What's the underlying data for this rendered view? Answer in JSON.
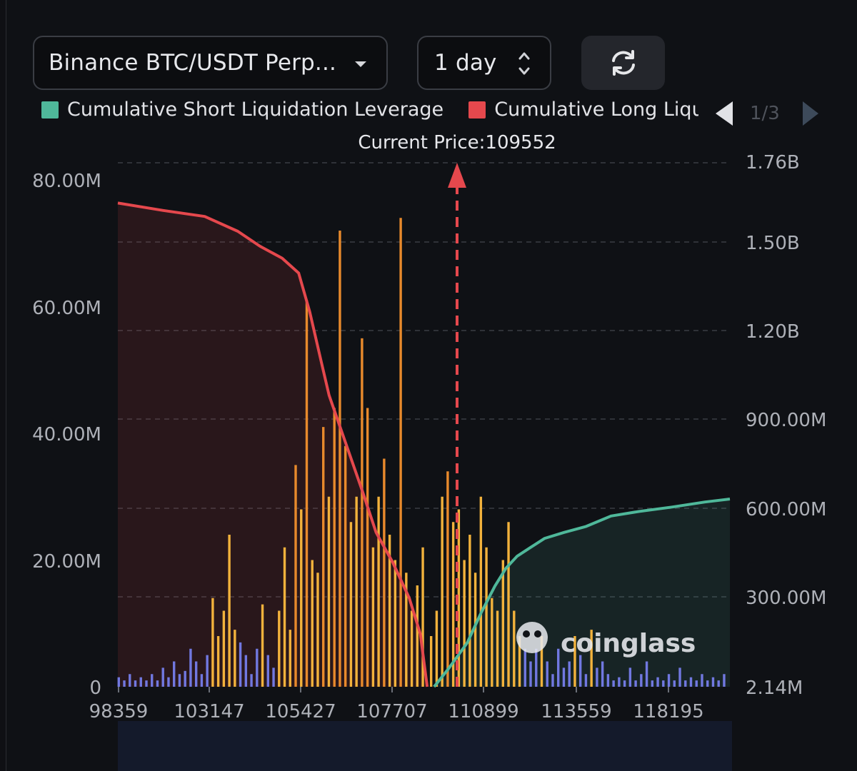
{
  "controls": {
    "exchange": "Binance BTC/USDT Perp...",
    "interval": "1 day"
  },
  "legend": {
    "items": [
      {
        "label": "Cumulative Short Liquidation Leverage",
        "color": "#4fb89a"
      },
      {
        "label": "Cumulative Long Liquidation Leverage",
        "color": "#e5484d"
      }
    ],
    "page": "1/3"
  },
  "watermark": "coinglass",
  "chart_data": {
    "type": "bar",
    "current_price_label": "Current Price:109552",
    "current_price": 109552,
    "x_ticks": [
      "98359",
      "103147",
      "105427",
      "107707",
      "110899",
      "113559",
      "118195"
    ],
    "x_range": [
      98359,
      120500
    ],
    "left_axis": {
      "ticks": [
        "0",
        "20.00M",
        "40.00M",
        "60.00M",
        "80.00M"
      ],
      "range": [
        0,
        80000000
      ]
    },
    "right_axis": {
      "ticks": [
        "2.14M",
        "300.00M",
        "600.00M",
        "900.00M",
        "1.20B",
        "1.50B",
        "1.76B"
      ],
      "range": [
        2140000,
        1760000000
      ]
    },
    "grid": true,
    "series": [
      {
        "name": "Cumulative Short Liquidation Leverage",
        "kind": "line",
        "color": "#4fb89a",
        "x": [
          109800,
          110300,
          111000,
          111500,
          112000,
          112400,
          112800,
          113300,
          113800,
          114500,
          115300,
          116200,
          117200,
          118400,
          119600,
          120500
        ],
        "y": [
          2140000,
          60000000,
          150000000,
          250000000,
          340000000,
          400000000,
          440000000,
          470000000,
          500000000,
          520000000,
          540000000,
          575000000,
          590000000,
          605000000,
          622000000,
          632000000
        ]
      },
      {
        "name": "Cumulative Long Liquidation Leverage",
        "kind": "line",
        "color": "#e5484d",
        "x": [
          98359,
          100000,
          101500,
          102700,
          103500,
          104300,
          104900,
          105300,
          105700,
          106000,
          106600,
          107200,
          107700,
          108300,
          108900,
          109300,
          109552
        ],
        "y": [
          1625000000,
          1600000000,
          1580000000,
          1530000000,
          1480000000,
          1440000000,
          1390000000,
          1260000000,
          1100000000,
          980000000,
          820000000,
          660000000,
          520000000,
          420000000,
          300000000,
          180000000,
          2140000
        ]
      }
    ],
    "bars": {
      "x": [
        98400,
        98600,
        98800,
        99000,
        99200,
        99400,
        99600,
        99800,
        100000,
        100200,
        100400,
        100600,
        100800,
        101000,
        101200,
        101400,
        101600,
        101800,
        102000,
        102200,
        102400,
        102600,
        102800,
        103000,
        103200,
        103400,
        103600,
        103800,
        104000,
        104200,
        104400,
        104600,
        104800,
        105000,
        105200,
        105400,
        105600,
        105800,
        106000,
        106200,
        106400,
        106600,
        106800,
        107000,
        107200,
        107400,
        107600,
        107800,
        108000,
        108200,
        108400,
        108600,
        108800,
        109000,
        109200,
        109400,
        109700,
        109900,
        110100,
        110300,
        110500,
        110700,
        110900,
        111100,
        111300,
        111500,
        111700,
        111900,
        112100,
        112300,
        112500,
        112700,
        112900,
        113100,
        113300,
        113500,
        113700,
        113900,
        114100,
        114300,
        114500,
        114700,
        114900,
        115100,
        115300,
        115500,
        115700,
        115900,
        116100,
        116300,
        116500,
        116700,
        116900,
        117100,
        117300,
        117500,
        117700,
        117900,
        118100,
        118300,
        118500,
        118700,
        118900,
        119100,
        119300,
        119500,
        119700,
        119900,
        120100,
        120300
      ],
      "values": [
        1.5,
        1,
        2,
        1,
        1.5,
        1,
        2,
        1,
        3,
        1.5,
        4,
        2,
        2.5,
        6,
        4,
        2,
        5,
        14,
        8,
        12,
        24,
        9,
        7,
        5,
        2,
        6,
        13,
        5,
        3,
        12,
        22,
        9,
        35,
        28,
        61,
        20,
        18,
        41,
        30,
        44,
        72,
        38,
        26,
        30,
        55,
        44,
        22,
        30,
        36,
        24,
        20,
        74,
        18,
        12,
        16,
        22,
        8,
        12,
        30,
        34,
        26,
        28,
        20,
        24,
        18,
        30,
        22,
        14,
        12,
        20,
        26,
        12,
        8,
        6,
        4,
        6,
        8,
        4,
        2,
        6,
        3,
        4,
        8,
        5,
        2,
        9,
        3,
        4,
        2,
        1,
        1.5,
        1,
        3,
        1,
        2,
        4,
        1,
        1.5,
        1,
        2,
        1,
        3,
        1,
        1.5,
        1,
        2,
        1,
        1.5,
        1,
        2
      ],
      "colors_by_zone": {
        "low": "#7178e0",
        "mid": "#f2b23c",
        "high": "#e88a2c"
      }
    }
  }
}
